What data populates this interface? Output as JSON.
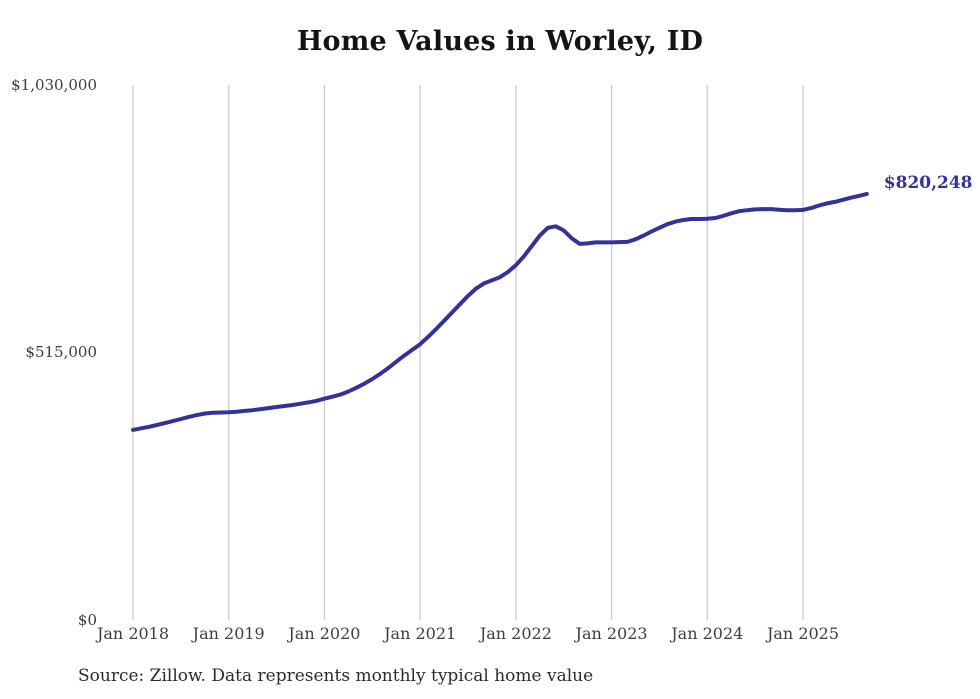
{
  "title": "Home Values in Worley, ID",
  "end_label": "$820,248",
  "source": "Source: Zillow. Data represents monthly typical home value",
  "y_axis": {
    "labels": [
      "$1,030,000",
      "$515,000",
      "$0"
    ],
    "values": [
      1030000,
      515000,
      0
    ]
  },
  "chart_data": {
    "type": "line",
    "title": "Home Values in Worley, ID",
    "series_name": "Monthly typical home value",
    "x_start": "Jan 2018",
    "x_end": "Sep 2025",
    "x_tick_labels": [
      "Jan 2018",
      "Jan 2019",
      "Jan 2020",
      "Jan 2021",
      "Jan 2022",
      "Jan 2023",
      "Jan 2024",
      "Jan 2025"
    ],
    "y_tick_values": [
      0,
      515000,
      1030000
    ],
    "ylim": [
      0,
      1030000
    ],
    "grid": "vertical-only",
    "legend": "none",
    "line_color": "#32329b",
    "grid_color": "#cccccc",
    "latest_value": 820248,
    "values": [
      366000,
      369000,
      372000,
      375500,
      379000,
      383000,
      387000,
      391000,
      394500,
      397500,
      399000,
      399500,
      400000,
      401000,
      402500,
      404000,
      406000,
      408000,
      410000,
      412000,
      414000,
      416500,
      419000,
      422000,
      426000,
      430000,
      434000,
      440000,
      447000,
      455000,
      464000,
      474000,
      485000,
      497000,
      509000,
      520000,
      531000,
      545000,
      560000,
      576000,
      592000,
      608000,
      624000,
      638000,
      648000,
      654000,
      660000,
      670000,
      683000,
      700000,
      720000,
      740000,
      755000,
      758000,
      750000,
      735000,
      724000,
      725000,
      727000,
      727000,
      727000,
      727500,
      728000,
      733000,
      740000,
      748000,
      755000,
      762000,
      767000,
      770000,
      772000,
      772000,
      772500,
      774000,
      778000,
      783000,
      787000,
      789000,
      790500,
      791000,
      791000,
      790000,
      789000,
      789000,
      789500,
      793000,
      798000,
      802000,
      805000,
      809000,
      813000,
      816500,
      820248
    ]
  }
}
